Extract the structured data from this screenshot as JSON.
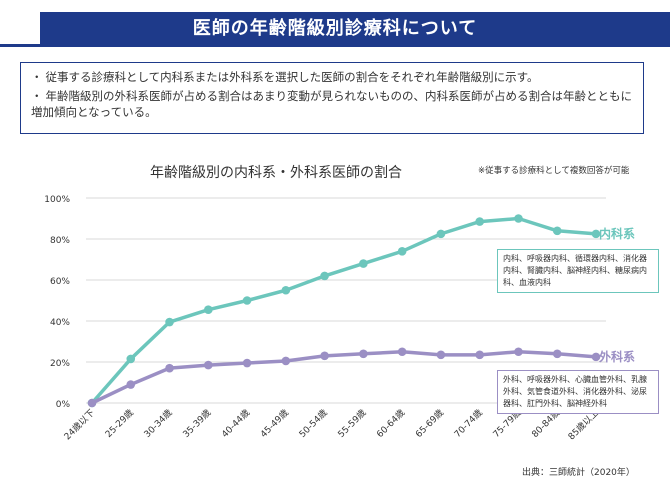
{
  "header": {
    "title": "医師の年齢階級別診療科について"
  },
  "summary": {
    "items": [
      "従事する診療科として内科系または外科系を選択した医師の割合をそれぞれ年齢階級別に示す。",
      "年齢階級別の外科系医師が占める割合はあまり変動が見られないものの、内科系医師が占める割合は年齢とともに増加傾向となっている。"
    ],
    "bullet": "・"
  },
  "chart_title": "年齢階級別の内科系・外科系医師の割合",
  "chart_note": "※従事する診療科として複数回答が可能",
  "source": "出典：三師統計（2020年）",
  "notes": {
    "naika": "内科、呼吸器内科、循環器内科、消化器内科、腎臓内科、脳神経内科、糖尿病内科、血液内科",
    "geka": "外科、呼吸器外科、心臓血管外科、乳腺外科、気管食道外科、消化器外科、泌尿器科、肛門外科、脳神経外科"
  },
  "colors": {
    "naika": "#6cc6bc",
    "geka": "#9b8fc4",
    "header": "#1e3a8a",
    "grid": "#d9d9d9"
  },
  "chart_data": {
    "type": "line",
    "title": "年齢階級別の内科系・外科系医師の割合",
    "xlabel": "",
    "ylabel": "",
    "ylim": [
      0,
      100
    ],
    "yticks": [
      "0%",
      "20%",
      "40%",
      "60%",
      "80%",
      "100%"
    ],
    "grid": true,
    "categories": [
      "24歳以下",
      "25-29歳",
      "30-34歳",
      "35-39歳",
      "40-44歳",
      "45-49歳",
      "50-54歳",
      "55-59歳",
      "60-64歳",
      "65-69歳",
      "70-74歳",
      "75-79歳",
      "80-84歳",
      "85歳以上"
    ],
    "series": [
      {
        "name": "内科系",
        "values": [
          0,
          21.5,
          39.5,
          45.5,
          50,
          55,
          62,
          68,
          74,
          82.5,
          88.5,
          90,
          84,
          82.5
        ]
      },
      {
        "name": "外科系",
        "values": [
          0,
          9,
          17,
          18.5,
          19.5,
          20.5,
          23,
          24,
          25,
          23.5,
          23.5,
          25,
          24,
          22.5
        ]
      }
    ]
  }
}
